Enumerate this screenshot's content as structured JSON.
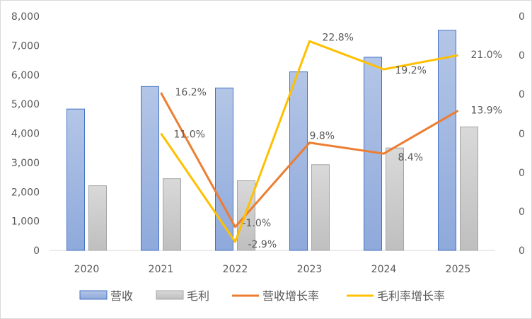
{
  "chart_data": {
    "type": "bar",
    "categories": [
      "2020",
      "2021",
      "2022",
      "2023",
      "2024",
      "2025"
    ],
    "series": [
      {
        "name": "营收",
        "kind": "bar",
        "axis": "left",
        "color": "#8EA9DB",
        "values": [
          4830,
          5600,
          5550,
          6100,
          6600,
          7520
        ]
      },
      {
        "name": "毛利",
        "kind": "bar",
        "axis": "left",
        "color": "#C9C9C9",
        "values": [
          2210,
          2450,
          2380,
          2930,
          3500,
          4220
        ]
      },
      {
        "name": "营收增长率",
        "kind": "line",
        "axis": "right",
        "color": "#ED7D31",
        "values": [
          null,
          0.162,
          -0.01,
          0.098,
          0.084,
          0.139
        ],
        "labels": [
          "",
          "16.2%",
          "-1.0%",
          "9.8%",
          "8.4%",
          "13.9%"
        ]
      },
      {
        "name": "毛利率增长率",
        "kind": "line",
        "axis": "right",
        "color": "#FFC000",
        "values": [
          null,
          0.11,
          -0.029,
          0.228,
          0.192,
          0.21
        ],
        "labels": [
          "",
          "11.0%",
          "-2.9%",
          "22.8%",
          "19.2%",
          "21.0%"
        ]
      }
    ],
    "y_left": {
      "ticks": [
        "8,000",
        "7,000",
        "6,000",
        "5,000",
        "4,000",
        "3,000",
        "2,000",
        "1,000",
        "0"
      ],
      "ylim": [
        0,
        8000
      ]
    },
    "y_right": {
      "ticks": [
        "0",
        "0",
        "0",
        "0",
        "0",
        "0",
        "0"
      ],
      "ylim": [
        -0.04,
        0.26
      ]
    },
    "grid": false,
    "legend": "bottom"
  }
}
